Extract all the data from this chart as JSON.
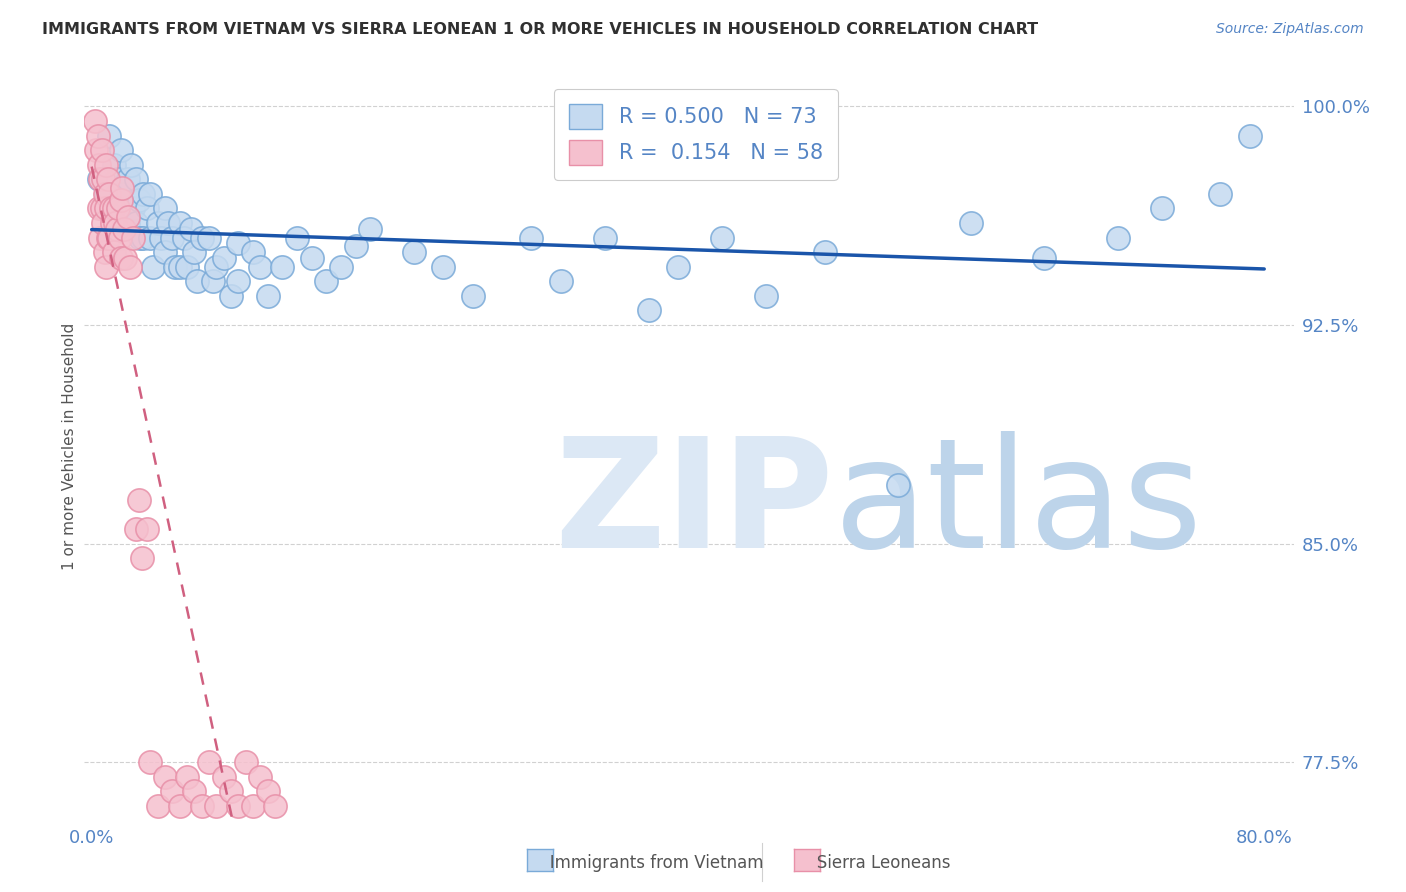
{
  "title": "IMMIGRANTS FROM VIETNAM VS SIERRA LEONEAN 1 OR MORE VEHICLES IN HOUSEHOLD CORRELATION CHART",
  "source": "Source: ZipAtlas.com",
  "ylabel": "1 or more Vehicles in Household",
  "xlim": [
    -0.005,
    0.82
  ],
  "ylim": [
    0.755,
    1.012
  ],
  "yticks": [
    0.775,
    0.85,
    0.925,
    1.0
  ],
  "ytick_labels": [
    "77.5%",
    "85.0%",
    "92.5%",
    "100.0%"
  ],
  "xticks": [
    0.0,
    0.1,
    0.2,
    0.3,
    0.4,
    0.5,
    0.6,
    0.7,
    0.8
  ],
  "xtick_labels": [
    "0.0%",
    "",
    "",
    "",
    "",
    "",
    "",
    "",
    "80.0%"
  ],
  "R_vietnam": 0.5,
  "N_vietnam": 73,
  "R_sierra": 0.154,
  "N_sierra": 58,
  "blue_fill": "#c5daf0",
  "blue_edge": "#7aaad8",
  "pink_fill": "#f5c0ce",
  "pink_edge": "#e890a8",
  "blue_line_color": "#1a55aa",
  "pink_line_color": "#d06080",
  "title_color": "#303030",
  "axis_color": "#5585c5",
  "grid_color": "#cccccc",
  "wm_zip_color": "#dce8f5",
  "wm_atlas_color": "#bdd4ea",
  "vietnam_x": [
    0.005,
    0.01,
    0.012,
    0.015,
    0.015,
    0.018,
    0.02,
    0.02,
    0.022,
    0.025,
    0.025,
    0.027,
    0.028,
    0.03,
    0.03,
    0.032,
    0.033,
    0.035,
    0.035,
    0.038,
    0.04,
    0.04,
    0.042,
    0.045,
    0.047,
    0.05,
    0.05,
    0.052,
    0.055,
    0.057,
    0.06,
    0.06,
    0.063,
    0.065,
    0.068,
    0.07,
    0.072,
    0.075,
    0.08,
    0.083,
    0.085,
    0.09,
    0.095,
    0.1,
    0.1,
    0.11,
    0.115,
    0.12,
    0.13,
    0.14,
    0.15,
    0.16,
    0.17,
    0.18,
    0.19,
    0.22,
    0.24,
    0.26,
    0.3,
    0.32,
    0.35,
    0.38,
    0.4,
    0.43,
    0.46,
    0.5,
    0.55,
    0.6,
    0.65,
    0.7,
    0.73,
    0.77,
    0.79
  ],
  "vietnam_y": [
    0.975,
    0.97,
    0.99,
    0.98,
    0.965,
    0.975,
    0.985,
    0.97,
    0.96,
    0.975,
    0.96,
    0.98,
    0.965,
    0.975,
    0.96,
    0.968,
    0.955,
    0.97,
    0.955,
    0.965,
    0.97,
    0.955,
    0.945,
    0.96,
    0.955,
    0.965,
    0.95,
    0.96,
    0.955,
    0.945,
    0.96,
    0.945,
    0.955,
    0.945,
    0.958,
    0.95,
    0.94,
    0.955,
    0.955,
    0.94,
    0.945,
    0.948,
    0.935,
    0.953,
    0.94,
    0.95,
    0.945,
    0.935,
    0.945,
    0.955,
    0.948,
    0.94,
    0.945,
    0.952,
    0.958,
    0.95,
    0.945,
    0.935,
    0.955,
    0.94,
    0.955,
    0.93,
    0.945,
    0.955,
    0.935,
    0.95,
    0.87,
    0.96,
    0.948,
    0.955,
    0.965,
    0.97,
    0.99
  ],
  "sierra_x": [
    0.002,
    0.003,
    0.004,
    0.005,
    0.005,
    0.006,
    0.006,
    0.007,
    0.007,
    0.008,
    0.008,
    0.009,
    0.009,
    0.01,
    0.01,
    0.01,
    0.011,
    0.011,
    0.012,
    0.012,
    0.013,
    0.014,
    0.015,
    0.015,
    0.016,
    0.017,
    0.018,
    0.019,
    0.02,
    0.02,
    0.021,
    0.022,
    0.023,
    0.025,
    0.026,
    0.028,
    0.03,
    0.032,
    0.034,
    0.038,
    0.04,
    0.045,
    0.05,
    0.055,
    0.06,
    0.065,
    0.07,
    0.075,
    0.08,
    0.085,
    0.09,
    0.095,
    0.1,
    0.105,
    0.11,
    0.115,
    0.12,
    0.125
  ],
  "sierra_y": [
    0.995,
    0.985,
    0.99,
    0.98,
    0.965,
    0.975,
    0.955,
    0.985,
    0.965,
    0.975,
    0.96,
    0.97,
    0.95,
    0.98,
    0.965,
    0.945,
    0.975,
    0.955,
    0.97,
    0.955,
    0.965,
    0.96,
    0.965,
    0.95,
    0.96,
    0.958,
    0.965,
    0.955,
    0.968,
    0.948,
    0.972,
    0.958,
    0.948,
    0.962,
    0.945,
    0.955,
    0.855,
    0.865,
    0.845,
    0.855,
    0.775,
    0.76,
    0.77,
    0.765,
    0.76,
    0.77,
    0.765,
    0.76,
    0.775,
    0.76,
    0.77,
    0.765,
    0.76,
    0.775,
    0.76,
    0.77,
    0.765,
    0.76
  ]
}
